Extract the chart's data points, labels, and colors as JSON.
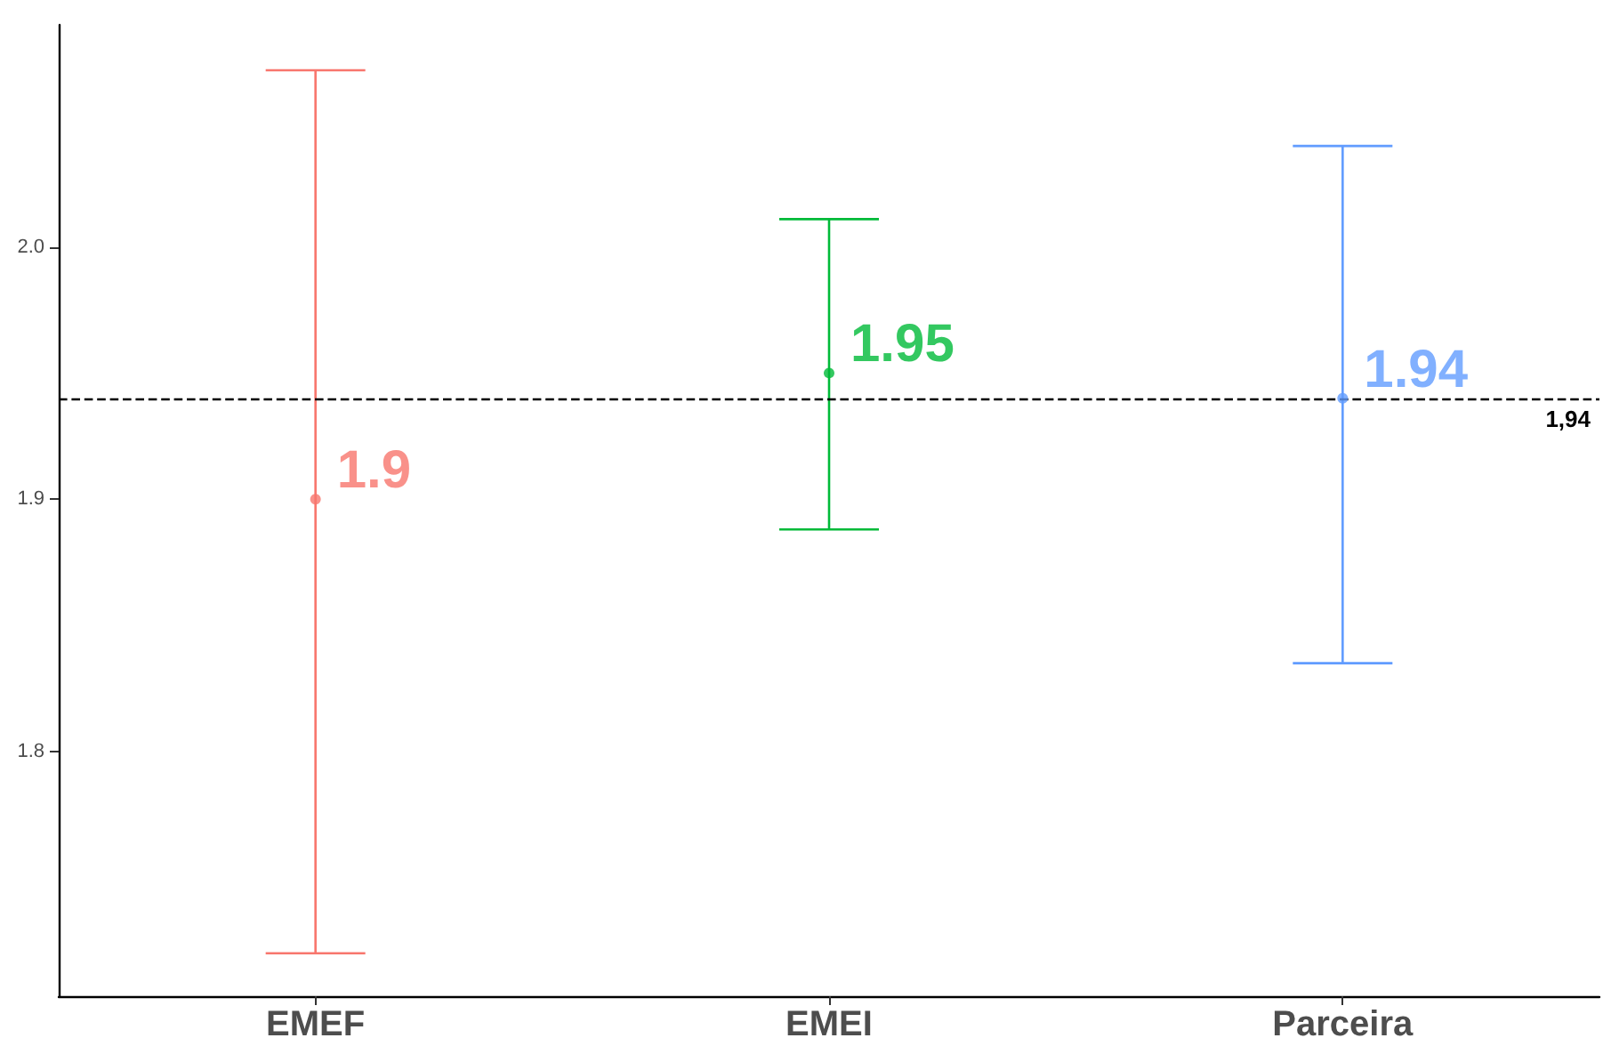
{
  "chart_data": {
    "type": "scatter",
    "categories": [
      "EMEF",
      "EMEI",
      "Parceira"
    ],
    "values": [
      1.9,
      1.95,
      1.94
    ],
    "colors": [
      "#f8766d",
      "#00ba38",
      "#619cff"
    ],
    "errors": [
      [
        1.72,
        2.07
      ],
      [
        1.888,
        2.011
      ],
      [
        1.835,
        2.04
      ]
    ],
    "value_labels": [
      "1.9",
      "1.95",
      "1.94"
    ],
    "ylim": [
      1.703,
      2.088
    ],
    "yticks": [
      1.8,
      1.9,
      {
        "value": 2,
        "label": "2.0"
      }
    ],
    "ref_lines": [
      {
        "axis": "y",
        "value": 1.94,
        "label": "1,94",
        "color": "#000000",
        "line_style": "dashed"
      }
    ],
    "grid": false
  }
}
